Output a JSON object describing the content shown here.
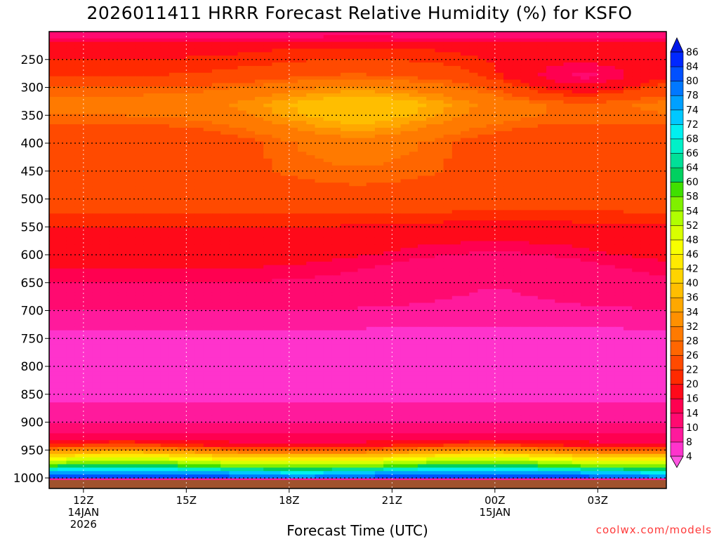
{
  "chart_data": {
    "type": "heatmap",
    "title": "2026011411 HRRR Forecast Relative Humidity (%) for KSFO",
    "xlabel": "Forecast Time (UTC)",
    "ylabel": "",
    "x_ticks": [
      {
        "hour": 12,
        "label": "12Z",
        "sub": [
          "14JAN",
          "2026"
        ]
      },
      {
        "hour": 15,
        "label": "15Z",
        "sub": []
      },
      {
        "hour": 18,
        "label": "18Z",
        "sub": []
      },
      {
        "hour": 21,
        "label": "21Z",
        "sub": []
      },
      {
        "hour": 24,
        "label": "00Z",
        "sub": [
          "15JAN"
        ]
      },
      {
        "hour": 27,
        "label": "03Z",
        "sub": []
      }
    ],
    "xlim": [
      11,
      29
    ],
    "y_ticks": [
      250,
      300,
      350,
      400,
      450,
      500,
      550,
      600,
      650,
      700,
      750,
      800,
      850,
      900,
      950,
      1000
    ],
    "ylim": [
      200,
      1000
    ],
    "colorbar": {
      "levels": [
        4,
        8,
        10,
        14,
        16,
        20,
        22,
        26,
        28,
        32,
        34,
        36,
        40,
        42,
        46,
        48,
        52,
        54,
        58,
        60,
        64,
        66,
        68,
        72,
        74,
        78,
        80,
        84,
        86
      ],
      "colors": [
        "#ff33cc",
        "#ff1a9c",
        "#ff0a70",
        "#ff0050",
        "#ff0a1a",
        "#ff2a00",
        "#ff4a00",
        "#ff6600",
        "#ff7a00",
        "#ff9000",
        "#ffa800",
        "#ffbe00",
        "#ffd400",
        "#ffea00",
        "#f8ff00",
        "#d8ff00",
        "#b0ff00",
        "#80f000",
        "#40e000",
        "#00d060",
        "#00e098",
        "#00f0c8",
        "#00f0f0",
        "#00c8ff",
        "#00a0ff",
        "#0078ff",
        "#0050ff",
        "#0028ff"
      ],
      "top_color": "#0018e8",
      "bottom_color": "#ff55e0"
    },
    "profile": {
      "pressure": [
        200,
        230,
        250,
        280,
        300,
        330,
        350,
        380,
        400,
        450,
        500,
        550,
        600,
        650,
        700,
        750,
        800,
        850,
        900,
        940,
        960,
        980,
        990,
        1000
      ],
      "rh": [
        11,
        19,
        20,
        22,
        26,
        30,
        28,
        24,
        22,
        24,
        24,
        20,
        18,
        14,
        10,
        7,
        6,
        7,
        10,
        18,
        40,
        60,
        74,
        84
      ]
    },
    "ground_color": "#a0522d",
    "grid": true
  },
  "credit": "coolwx.com/models"
}
